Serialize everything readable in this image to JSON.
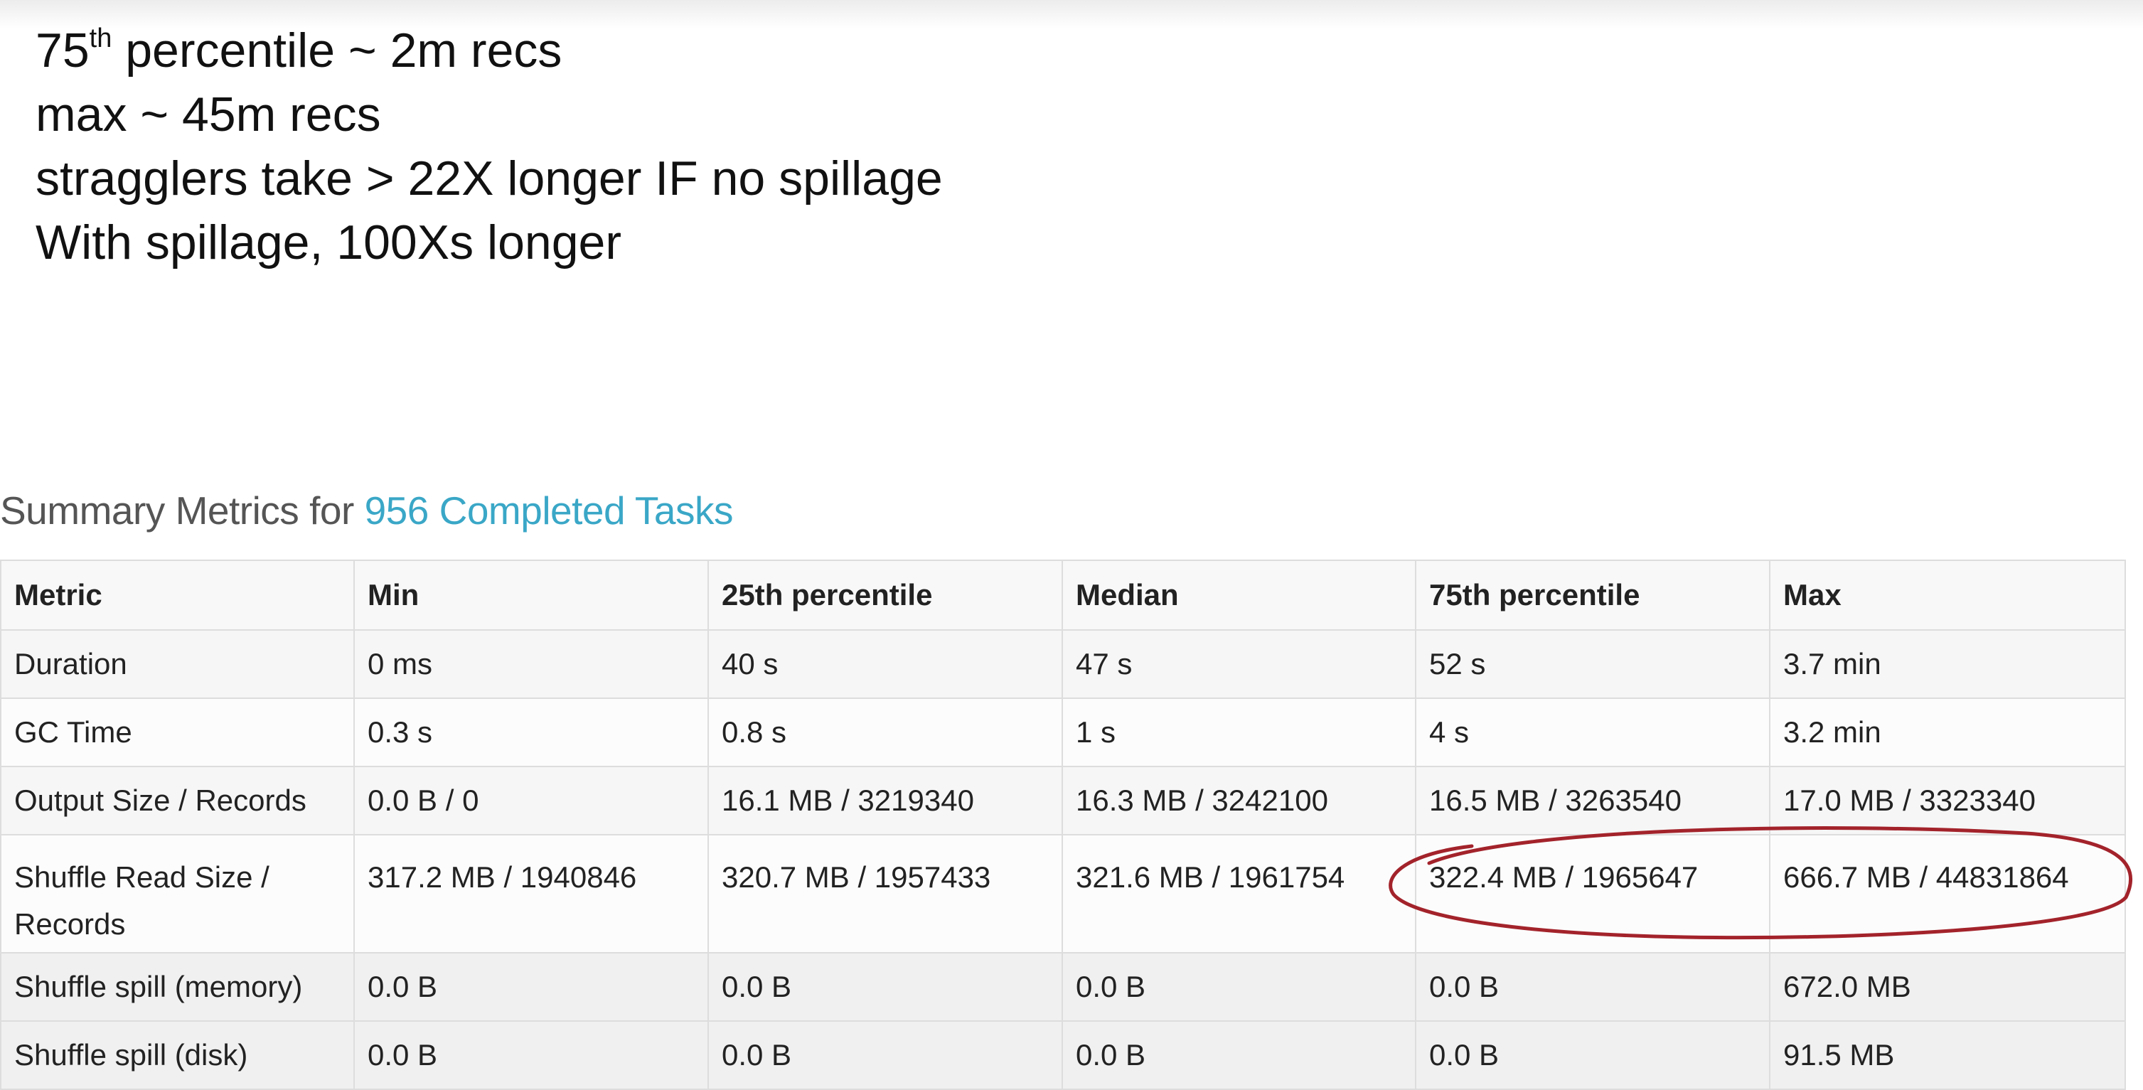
{
  "notes": {
    "line1_prefix": "75",
    "line1_sup": "th",
    "line1_rest": " percentile ~ 2m recs",
    "line2": "max ~ 45m recs",
    "line3": "stragglers take > 22X longer IF no spillage",
    "line4": "With spillage, 100Xs longer"
  },
  "summary": {
    "prefix": "Summary Metrics for ",
    "link": "956 Completed Tasks"
  },
  "table": {
    "headers": [
      "Metric",
      "Min",
      "25th percentile",
      "Median",
      "75th percentile",
      "Max"
    ],
    "rows": [
      [
        "Duration",
        "0 ms",
        "40 s",
        "47 s",
        "52 s",
        "3.7 min"
      ],
      [
        "GC Time",
        "0.3 s",
        "0.8 s",
        "1 s",
        "4 s",
        "3.2 min"
      ],
      [
        "Output Size / Records",
        "0.0 B / 0",
        "16.1 MB / 3219340",
        "16.3 MB / 3242100",
        "16.5 MB / 3263540",
        "17.0 MB / 3323340"
      ],
      [
        "Shuffle Read Size / Records",
        "317.2 MB / 1940846",
        "320.7 MB / 1957433",
        "321.6 MB / 1961754",
        "322.4 MB / 1965647",
        "666.7 MB / 44831864"
      ],
      [
        "Shuffle spill (memory)",
        "0.0 B",
        "0.0 B",
        "0.0 B",
        "0.0 B",
        "672.0 MB"
      ],
      [
        "Shuffle spill (disk)",
        "0.0 B",
        "0.0 B",
        "0.0 B",
        "0.0 B",
        "91.5 MB"
      ]
    ]
  },
  "colors": {
    "link": "#3aa7c7",
    "annotation": "#a3232b"
  }
}
